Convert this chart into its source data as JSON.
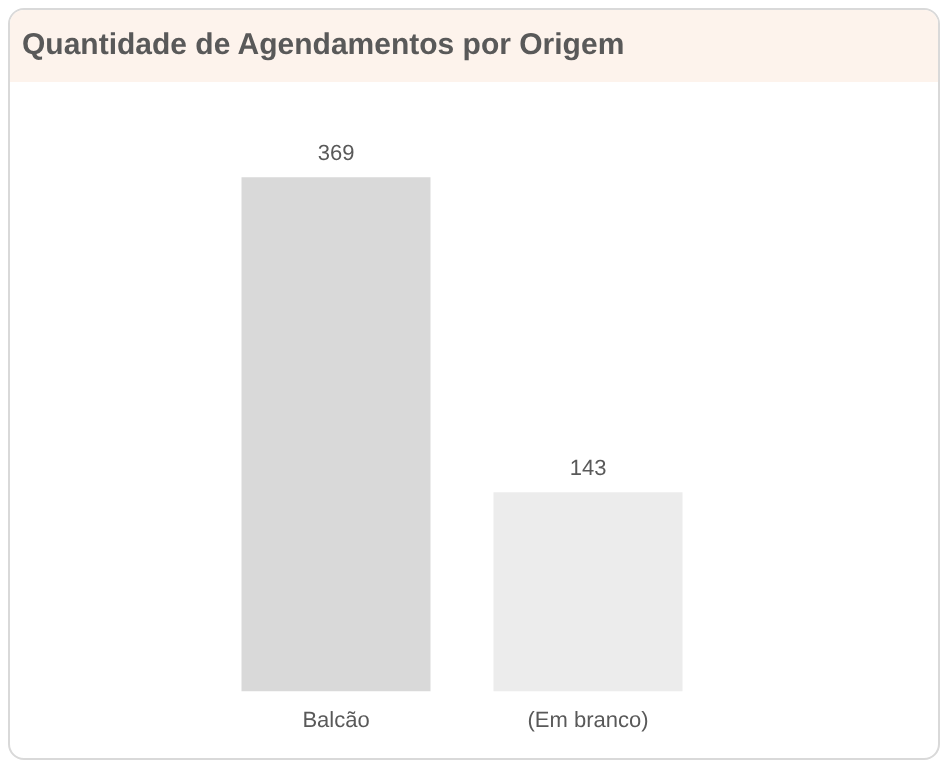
{
  "chart_data": {
    "type": "bar",
    "title": "Quantidade de Agendamentos por Origem",
    "categories": [
      "Balcão",
      "(Em branco)"
    ],
    "values": [
      369,
      143
    ],
    "colors": [
      "#d9d9d9",
      "#ececec"
    ],
    "data_labels": true,
    "grid": false,
    "legend": false
  }
}
